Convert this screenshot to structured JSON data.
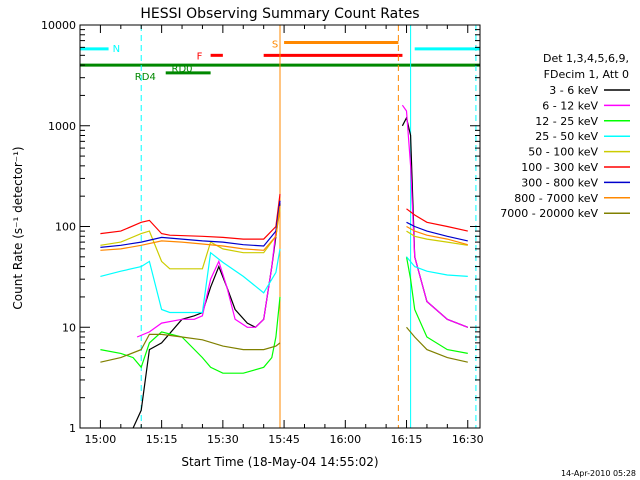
{
  "chart_data": {
    "type": "line",
    "title": "HESSI Observing Summary Count Rates",
    "xlabel": "Start Time (18-May-04 14:55:02)",
    "ylabel": "Count Rate (s⁻¹ detector⁻¹)",
    "y_scale": "log",
    "ylim": [
      1,
      10000
    ],
    "xlim": [
      "14:55",
      "16:33"
    ],
    "x_ticks": [
      "15:00",
      "15:15",
      "15:30",
      "15:45",
      "16:00",
      "16:15",
      "16:30"
    ],
    "y_ticks": [
      "1",
      "10",
      "100",
      "1000",
      "10000"
    ],
    "legend_header": [
      "Det 1,3,4,5,6,9,",
      "FDecim 1, Att 0"
    ],
    "legend_position": "right",
    "footer_stamp": "14-Apr-2010 05:28",
    "series": [
      {
        "name": "3 - 6 keV",
        "color": "#000000",
        "x": [
          "14:55",
          "15:08",
          "15:10",
          "15:11",
          "15:12",
          "15:15",
          "15:20",
          "15:23",
          "15:25",
          "15:27",
          "15:29",
          "15:31",
          "15:33",
          "15:36",
          "15:38",
          "15:40",
          "15:42",
          "15:43",
          "15:44",
          "16:13",
          "16:14",
          "16:15",
          "16:16",
          "16:17",
          "16:20",
          "16:25",
          "16:30",
          "16:33"
        ],
        "y": [
          null,
          1,
          1.5,
          3,
          6,
          7,
          12,
          13,
          14,
          25,
          40,
          25,
          15,
          11,
          10,
          12,
          40,
          80,
          170,
          null,
          1000,
          1200,
          800,
          50,
          18,
          12,
          10,
          null
        ]
      },
      {
        "name": "6 - 12 keV",
        "color": "#ff00ff",
        "x": [
          "14:55",
          "15:09",
          "15:12",
          "15:15",
          "15:20",
          "15:23",
          "15:25",
          "15:27",
          "15:29",
          "15:31",
          "15:33",
          "15:36",
          "15:38",
          "15:40",
          "15:42",
          "15:43",
          "15:44",
          "16:13",
          "16:14",
          "16:15",
          "16:16",
          "16:17",
          "16:20",
          "16:25",
          "16:30",
          "16:33"
        ],
        "y": [
          null,
          8,
          9,
          11,
          12,
          12,
          13,
          30,
          45,
          25,
          12,
          10,
          10,
          12,
          40,
          90,
          180,
          null,
          1600,
          1400,
          400,
          50,
          18,
          12,
          10,
          null
        ]
      },
      {
        "name": "12 - 25 keV",
        "color": "#00ff00",
        "x": [
          "14:55",
          "15:00",
          "15:05",
          "15:08",
          "15:10",
          "15:12",
          "15:15",
          "15:20",
          "15:25",
          "15:27",
          "15:30",
          "15:35",
          "15:40",
          "15:42",
          "15:43",
          "15:44",
          "16:14",
          "16:15",
          "16:16",
          "16:17",
          "16:20",
          "16:25",
          "16:30",
          "16:33"
        ],
        "y": [
          null,
          6,
          5.5,
          5,
          4,
          7,
          9,
          8,
          5,
          4,
          3.5,
          3.5,
          4,
          5,
          8,
          20,
          null,
          50,
          30,
          15,
          8,
          6,
          5.5,
          null
        ]
      },
      {
        "name": "25 - 50 keV",
        "color": "#00ffff",
        "x": [
          "14:55",
          "15:00",
          "15:05",
          "15:10",
          "15:12",
          "15:15",
          "15:17",
          "15:25",
          "15:27",
          "15:30",
          "15:35",
          "15:40",
          "15:43",
          "15:44",
          "16:14",
          "16:15",
          "16:17",
          "16:20",
          "16:25",
          "16:30",
          "16:33"
        ],
        "y": [
          null,
          32,
          36,
          40,
          45,
          15,
          14,
          14,
          55,
          44,
          32,
          22,
          35,
          60,
          null,
          50,
          40,
          36,
          33,
          32,
          null
        ]
      },
      {
        "name": "50 - 100 keV",
        "color": "#cccc00",
        "x": [
          "14:55",
          "15:00",
          "15:05",
          "15:10",
          "15:12",
          "15:15",
          "15:17",
          "15:25",
          "15:27",
          "15:30",
          "15:35",
          "15:40",
          "15:43",
          "15:44",
          "16:14",
          "16:15",
          "16:17",
          "16:20",
          "16:25",
          "16:30",
          "16:33"
        ],
        "y": [
          null,
          65,
          70,
          85,
          90,
          45,
          38,
          38,
          70,
          60,
          55,
          55,
          80,
          150,
          null,
          90,
          80,
          75,
          70,
          65,
          null
        ]
      },
      {
        "name": "100 - 300 keV",
        "color": "#ff0000",
        "x": [
          "14:55",
          "15:00",
          "15:05",
          "15:10",
          "15:12",
          "15:15",
          "15:17",
          "15:25",
          "15:30",
          "15:35",
          "15:40",
          "15:43",
          "15:44",
          "16:14",
          "16:15",
          "16:17",
          "16:20",
          "16:25",
          "16:30",
          "16:33"
        ],
        "y": [
          null,
          85,
          90,
          110,
          115,
          85,
          82,
          80,
          78,
          75,
          75,
          100,
          210,
          null,
          150,
          130,
          110,
          100,
          90,
          null
        ]
      },
      {
        "name": "300 - 800 keV",
        "color": "#0000cc",
        "x": [
          "14:55",
          "15:00",
          "15:05",
          "15:10",
          "15:15",
          "15:20",
          "15:25",
          "15:30",
          "15:35",
          "15:40",
          "15:43",
          "15:44",
          "16:14",
          "16:15",
          "16:17",
          "16:20",
          "16:25",
          "16:30",
          "16:33"
        ],
        "y": [
          null,
          62,
          65,
          70,
          78,
          75,
          72,
          70,
          66,
          64,
          90,
          180,
          null,
          110,
          100,
          90,
          80,
          72,
          null
        ]
      },
      {
        "name": "800 - 7000 keV",
        "color": "#ff8800",
        "x": [
          "14:55",
          "15:00",
          "15:05",
          "15:10",
          "15:15",
          "15:20",
          "15:25",
          "15:30",
          "15:35",
          "15:40",
          "15:43",
          "15:44",
          "16:14",
          "16:15",
          "16:17",
          "16:20",
          "16:25",
          "16:30",
          "16:33"
        ],
        "y": [
          null,
          58,
          60,
          65,
          72,
          70,
          67,
          64,
          60,
          58,
          80,
          160,
          null,
          100,
          90,
          82,
          75,
          66,
          null
        ]
      },
      {
        "name": "7000 - 20000 keV",
        "color": "#808000",
        "x": [
          "14:55",
          "15:00",
          "15:05",
          "15:10",
          "15:12",
          "15:15",
          "15:20",
          "15:25",
          "15:30",
          "15:35",
          "15:40",
          "15:43",
          "15:44",
          "16:14",
          "16:15",
          "16:17",
          "16:20",
          "16:25",
          "16:30",
          "16:33"
        ],
        "y": [
          null,
          4.5,
          5,
          6,
          8.5,
          8.5,
          8,
          7.5,
          6.5,
          6,
          6,
          6.5,
          7,
          null,
          10,
          8,
          6,
          5,
          4.5,
          null
        ]
      }
    ],
    "flags": [
      {
        "label": "N",
        "color": "#00ffff",
        "segments": [
          [
            "14:55",
            "15:02"
          ],
          [
            "16:17",
            "16:33"
          ]
        ],
        "y": 5800
      },
      {
        "label": "S",
        "color": "#ff8800",
        "segments": [
          [
            "15:45",
            "16:13"
          ]
        ],
        "y": 6700
      },
      {
        "label": "F",
        "color": "#ff0000",
        "segments": [
          [
            "15:27",
            "15:30"
          ],
          [
            "15:40",
            "16:14"
          ]
        ],
        "y": 5000
      },
      {
        "label": "RD0",
        "color": "#008800",
        "segments": [
          [
            "14:55",
            "16:33"
          ]
        ],
        "y": 4000
      },
      {
        "label": "RD4",
        "color": "#008800",
        "segments": [
          [
            "15:16",
            "15:27"
          ]
        ],
        "y": 3350
      }
    ],
    "vlines": [
      {
        "x": "14:55",
        "color": "#00ffff",
        "style": "solid"
      },
      {
        "x": "15:10",
        "color": "#00ffff",
        "style": "dashed"
      },
      {
        "x": "15:44",
        "color": "#ff8800",
        "style": "solid"
      },
      {
        "x": "16:13",
        "color": "#ff8800",
        "style": "dashed"
      },
      {
        "x": "16:16",
        "color": "#00ffff",
        "style": "solid"
      },
      {
        "x": "16:32",
        "color": "#00ffff",
        "style": "dashed"
      }
    ]
  }
}
